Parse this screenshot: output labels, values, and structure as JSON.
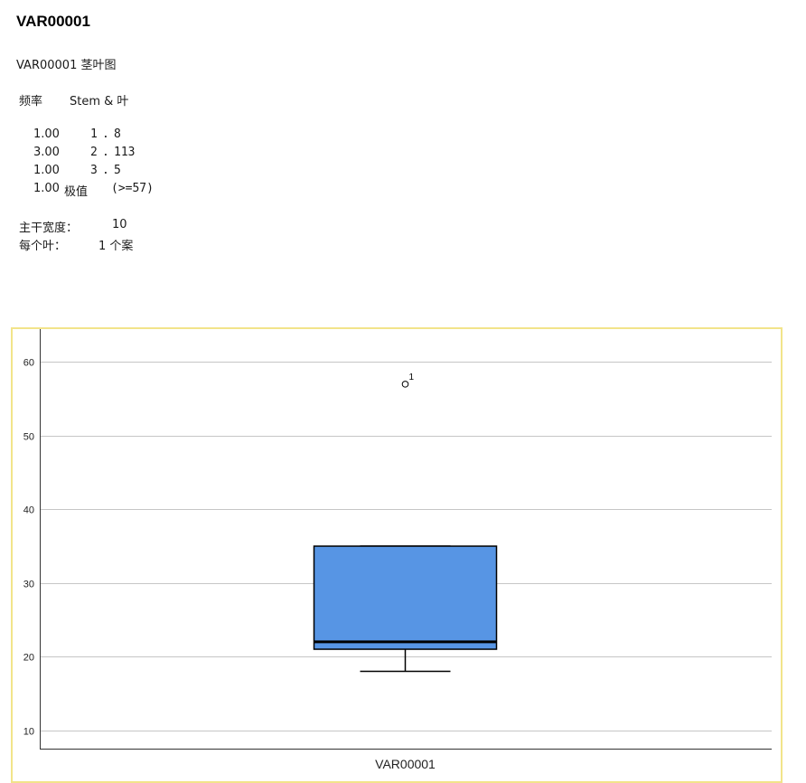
{
  "heading": "VAR00001",
  "stemleaf": {
    "title": "VAR00001 茎叶图",
    "header": {
      "freq": "频率",
      "stem_leaf": "Stem &  叶"
    },
    "rows": [
      {
        "freq": "1.00",
        "stem": "1",
        "leaf": "8"
      },
      {
        "freq": "3.00",
        "stem": "2",
        "leaf": "113"
      },
      {
        "freq": "1.00",
        "stem": "3",
        "leaf": "5"
      }
    ],
    "extreme": {
      "freq": "1.00",
      "label": "极值",
      "value": "(>=57)"
    },
    "stem_width": {
      "label": "主干宽度：",
      "value": "10"
    },
    "each_leaf": {
      "label": "每个叶：",
      "value": "1 个案"
    }
  },
  "chart_data": {
    "type": "boxplot",
    "xlabel": "VAR00001",
    "ylim": [
      7.5,
      63
    ],
    "yticks": [
      10,
      20,
      30,
      40,
      50,
      60
    ],
    "grid": true,
    "box": {
      "category": "VAR00001",
      "whisker_low": 18,
      "q1": 21,
      "median": 22,
      "q3": 35,
      "whisker_high": 35,
      "color": "#5795e4"
    },
    "outliers": [
      {
        "value": 57,
        "label": "1"
      }
    ]
  }
}
